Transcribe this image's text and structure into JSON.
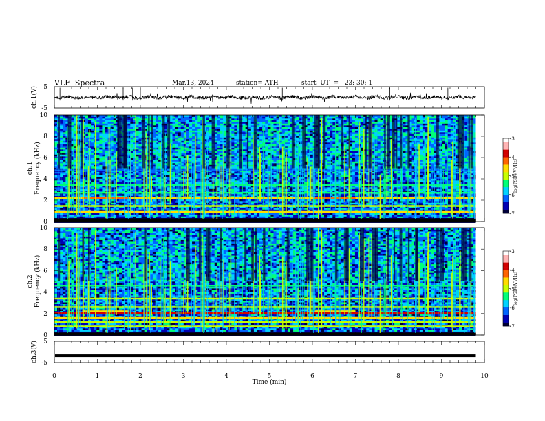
{
  "header": {
    "title": "VLF  Spectra",
    "date": "Mar.13, 2024",
    "station": "station= ATH",
    "start": "start  UT  =   23: 30: 1"
  },
  "colors": {
    "spectrogram_scale": [
      "#00003a",
      "#0000b4",
      "#0064ff",
      "#00d2ff",
      "#00ff78",
      "#c8ff00",
      "#ffdc00",
      "#ff6400",
      "#d20000",
      "#ffb4b4",
      "#ffffff"
    ]
  },
  "chart_data": [
    {
      "type": "line",
      "panel": "ch1",
      "ylabel": "ch.1(V)",
      "ylim": [
        -5,
        5
      ],
      "yticks": [
        "5",
        "-5"
      ],
      "series": [
        {
          "values": "noisy trace around 0 V, amplitude about ±1 V, occasional spikes to about ±3 V"
        }
      ]
    },
    {
      "type": "heatmap",
      "panel": "ch1",
      "ylabel": "ch.1\nFrequency  (kHz)",
      "ylim": [
        0,
        10
      ],
      "yticks": [
        "0",
        "2",
        "4",
        "6",
        "8",
        "10"
      ],
      "colorbar": {
        "label": "log(PSD)(V²/Hz)",
        "range": [
          -7,
          -3
        ],
        "ticks": [
          "-3",
          "-4",
          "-5",
          "-6",
          "-7"
        ]
      },
      "bands_khz": [
        {
          "f": 0.1,
          "level": -7
        },
        {
          "f": 0.9,
          "level": -4.8
        },
        {
          "f": 1.45,
          "level": -5.2
        },
        {
          "f": 2.2,
          "level": -4.6
        },
        {
          "f": 2.7,
          "level": -5.5
        },
        {
          "f": 3.4,
          "level": -5.4
        },
        {
          "f": 4.8,
          "level": -6.3
        }
      ],
      "sferics_density": "high across 0–9.8 min, most intense above 5 kHz"
    },
    {
      "type": "heatmap",
      "panel": "ch2",
      "ylabel": "ch.2\nFrequency  (kHz)",
      "ylim": [
        0,
        10
      ],
      "yticks": [
        "0",
        "2",
        "4",
        "6",
        "8",
        "10"
      ],
      "colorbar": {
        "label": "log(PSD)(V²/Hz)",
        "range": [
          -7,
          -3
        ],
        "ticks": [
          "-3",
          "-4",
          "-5",
          "-6",
          "-7"
        ]
      },
      "bands_khz": [
        {
          "f": 0.1,
          "level": -7
        },
        {
          "f": 0.8,
          "level": -5.0
        },
        {
          "f": 1.2,
          "level": -5.0
        },
        {
          "f": 1.6,
          "level": -4.6
        },
        {
          "f": 2.0,
          "level": -4.0
        },
        {
          "f": 2.6,
          "level": -4.9
        },
        {
          "f": 3.4,
          "level": -5.0
        },
        {
          "f": 4.6,
          "level": -5.4
        }
      ],
      "sferics_density": "high across 0–9.8 min, most intense above 5 kHz"
    },
    {
      "type": "line",
      "panel": "ch3",
      "ylabel": "ch.3(V)",
      "ylim": [
        -5,
        5
      ],
      "yticks": [
        "5",
        "-5"
      ],
      "series": [
        {
          "values": "flat trace at about -1.8 V from 0 to 9.8 min"
        }
      ]
    }
  ],
  "xaxis": {
    "label": "Time  (min)",
    "range": [
      0,
      10
    ],
    "data_end": 9.8,
    "ticks": [
      "0",
      "1",
      "2",
      "3",
      "4",
      "5",
      "6",
      "7",
      "8",
      "9",
      "10"
    ]
  }
}
